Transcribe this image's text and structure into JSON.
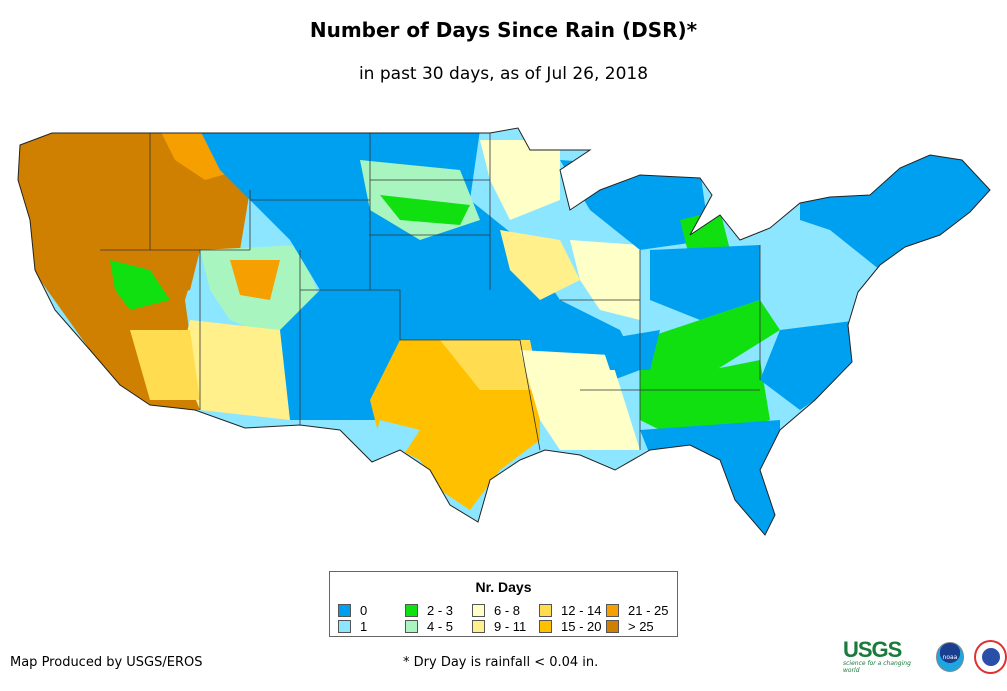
{
  "header": {
    "title": "Number of Days Since Rain (DSR)*",
    "subtitle": "in past 30 days, as of Jul 26, 2018"
  },
  "legend": {
    "title": "Nr. Days",
    "items": [
      {
        "label": "0",
        "color": "#00a0f0"
      },
      {
        "label": "1",
        "color": "#8ce6ff"
      },
      {
        "label": "2 - 3",
        "color": "#10e010"
      },
      {
        "label": "4 - 5",
        "color": "#a8f5c0"
      },
      {
        "label": "6 - 8",
        "color": "#ffffc8"
      },
      {
        "label": "9 - 11",
        "color": "#fff08c"
      },
      {
        "label": "12 - 14",
        "color": "#ffdc50"
      },
      {
        "label": "15 - 20",
        "color": "#ffc000"
      },
      {
        "label": "21 - 25",
        "color": "#f5a000"
      },
      {
        "label": "> 25",
        "color": "#d08000"
      }
    ]
  },
  "footer": {
    "credit": "Map Produced by USGS/EROS",
    "note": "* Dry Day is rainfall < 0.04 in."
  },
  "logos": {
    "usgs": "USGS",
    "usgs_tagline": "science for a changing world",
    "noaa": "noaa",
    "nws": "National Weather Service"
  }
}
